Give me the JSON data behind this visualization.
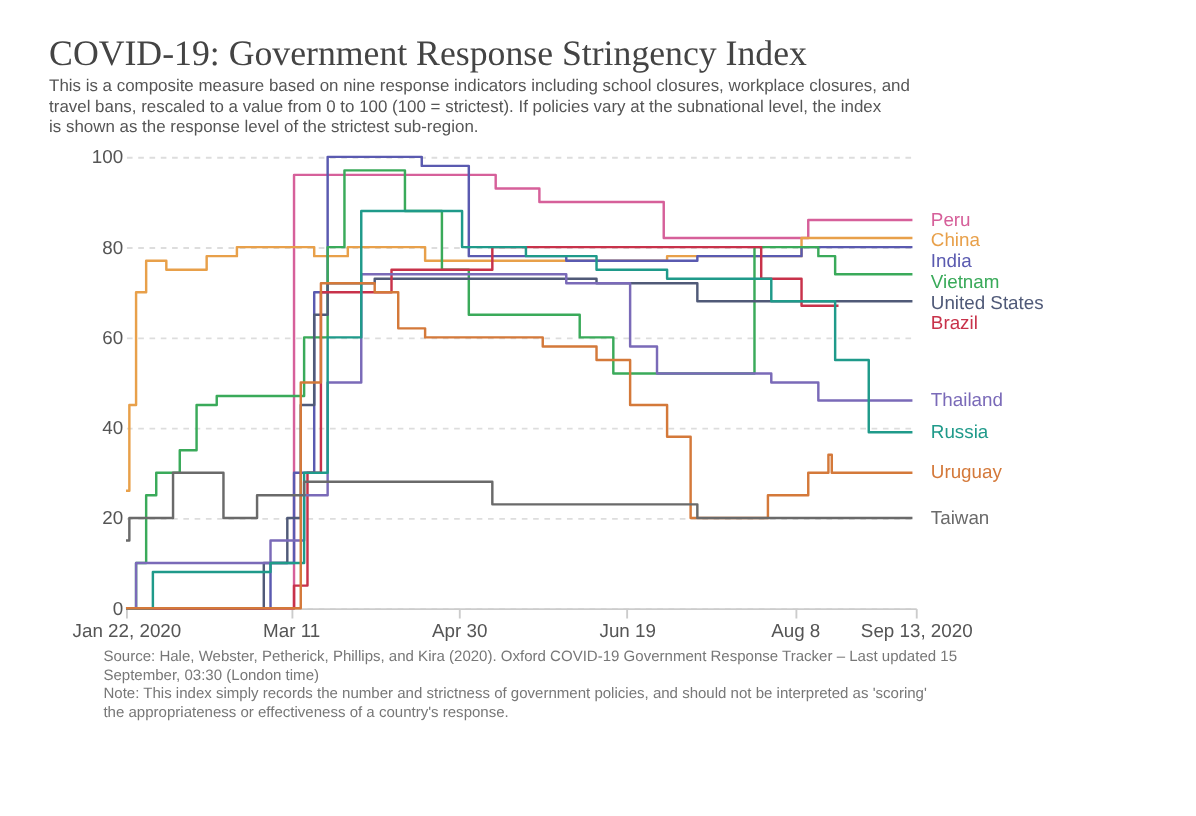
{
  "chart_data": {
    "type": "step",
    "title": "COVID-19: Government Response Stringency Index",
    "subtitle": "This is a composite measure based on nine response indicators including school closures, workplace closures, and travel bans, rescaled to a value from 0 to 100 (100 = strictest). If policies vary at the subnational level, the index is shown as the response level of the strictest sub-region.",
    "annotations": [
      "Source: Hale, Webster, Petherick, Phillips, and Kira (2020). Oxford COVID-19 Government Response Tracker – Last updated 15 September, 03:30 (London time)",
      "Note: This index simply records the number and strictness of government policies, and should not be interpreted as 'scoring' the appropriateness or effectiveness of a country's response."
    ],
    "xlim": [
      "2020-01-22",
      "2020-09-13"
    ],
    "xticks": [
      {
        "value": "2020-01-22",
        "label": "Jan 22, 2020"
      },
      {
        "value": "2020-03-11",
        "label": "Mar 11"
      },
      {
        "value": "2020-04-30",
        "label": "Apr 30"
      },
      {
        "value": "2020-06-19",
        "label": "Jun 19"
      },
      {
        "value": "2020-08-08",
        "label": "Aug 8"
      },
      {
        "value": "2020-09-13",
        "label": "Sep 13, 2020"
      }
    ],
    "ylim": [
      0,
      100
    ],
    "yticks": [
      0,
      20,
      40,
      60,
      80,
      100
    ],
    "grid": "y",
    "legend": "right",
    "line_style": "solid",
    "series": [
      {
        "name": "Peru",
        "color": "#d6609a",
        "x": [
          "2020-01-22",
          "2020-03-11",
          "2020-03-12",
          "2020-05-11",
          "2020-05-24",
          "2020-06-30",
          "2020-08-12",
          "2020-09-12"
        ],
        "values": [
          0,
          0,
          96,
          93,
          90,
          82,
          86,
          86
        ]
      },
      {
        "name": "China",
        "color": "#e8a04a",
        "x": [
          "2020-01-22",
          "2020-01-23",
          "2020-01-25",
          "2020-01-28",
          "2020-02-03",
          "2020-02-15",
          "2020-02-24",
          "2020-03-18",
          "2020-03-28",
          "2020-04-20",
          "2020-07-01",
          "2020-08-10",
          "2020-09-12"
        ],
        "values": [
          26,
          45,
          70,
          77,
          75,
          78,
          80,
          78,
          80,
          77,
          78,
          82,
          82
        ]
      },
      {
        "name": "India",
        "color": "#5a5ab0",
        "x": [
          "2020-01-22",
          "2020-03-05",
          "2020-03-12",
          "2020-03-18",
          "2020-03-22",
          "2020-04-19",
          "2020-05-03",
          "2020-06-01",
          "2020-07-10",
          "2020-08-10",
          "2020-09-12"
        ],
        "values": [
          0,
          10,
          30,
          70,
          100,
          98,
          78,
          77,
          78,
          80,
          80
        ]
      },
      {
        "name": "Vietnam",
        "color": "#3aaa5a",
        "x": [
          "2020-01-22",
          "2020-01-25",
          "2020-01-28",
          "2020-01-31",
          "2020-02-07",
          "2020-02-12",
          "2020-02-18",
          "2020-03-10",
          "2020-03-15",
          "2020-03-22",
          "2020-03-27",
          "2020-04-14",
          "2020-04-25",
          "2020-05-03",
          "2020-06-05",
          "2020-06-15",
          "2020-07-27",
          "2020-08-15",
          "2020-08-20",
          "2020-09-12"
        ],
        "values": [
          0,
          10,
          25,
          30,
          35,
          45,
          47,
          47,
          60,
          80,
          97,
          88,
          75,
          65,
          60,
          52,
          80,
          78,
          74,
          74
        ]
      },
      {
        "name": "United States",
        "color": "#505a78",
        "x": [
          "2020-01-22",
          "2020-03-03",
          "2020-03-10",
          "2020-03-14",
          "2020-03-18",
          "2020-03-22",
          "2020-04-05",
          "2020-06-10",
          "2020-07-10",
          "2020-09-12"
        ],
        "values": [
          0,
          10,
          20,
          45,
          65,
          72,
          73,
          72,
          68,
          68
        ]
      },
      {
        "name": "Brazil",
        "color": "#c8324a",
        "x": [
          "2020-01-22",
          "2020-03-12",
          "2020-03-16",
          "2020-03-20",
          "2020-04-10",
          "2020-05-10",
          "2020-07-25",
          "2020-07-29",
          "2020-08-10",
          "2020-08-21"
        ],
        "values": [
          0,
          5,
          30,
          70,
          75,
          80,
          80,
          73,
          67,
          67
        ]
      },
      {
        "name": "Thailand",
        "color": "#7a6ab8",
        "x": [
          "2020-01-22",
          "2020-01-25",
          "2020-03-05",
          "2020-03-15",
          "2020-03-22",
          "2020-04-01",
          "2020-06-01",
          "2020-06-20",
          "2020-06-28",
          "2020-08-01",
          "2020-08-15",
          "2020-09-12"
        ],
        "values": [
          0,
          10,
          15,
          25,
          50,
          74,
          72,
          58,
          52,
          50,
          46,
          46
        ]
      },
      {
        "name": "Russia",
        "color": "#1f9a8a",
        "x": [
          "2020-01-22",
          "2020-01-30",
          "2020-03-05",
          "2020-03-15",
          "2020-03-22",
          "2020-04-01",
          "2020-05-01",
          "2020-05-20",
          "2020-06-10",
          "2020-07-01",
          "2020-08-01",
          "2020-08-20",
          "2020-08-30",
          "2020-09-12"
        ],
        "values": [
          0,
          8,
          10,
          30,
          60,
          88,
          80,
          78,
          75,
          73,
          68,
          55,
          39,
          39
        ]
      },
      {
        "name": "Uruguay",
        "color": "#d4793a",
        "x": [
          "2020-01-22",
          "2020-03-14",
          "2020-03-20",
          "2020-04-05",
          "2020-04-12",
          "2020-04-20",
          "2020-05-25",
          "2020-06-10",
          "2020-06-20",
          "2020-07-01",
          "2020-07-08",
          "2020-07-31",
          "2020-08-12",
          "2020-08-18",
          "2020-08-19",
          "2020-09-12"
        ],
        "values": [
          0,
          50,
          72,
          70,
          62,
          60,
          58,
          55,
          45,
          38,
          20,
          25,
          30,
          34,
          30,
          30
        ]
      },
      {
        "name": "Taiwan",
        "color": "#6a6a6a",
        "x": [
          "2020-01-22",
          "2020-01-23",
          "2020-02-05",
          "2020-02-20",
          "2020-03-01",
          "2020-03-15",
          "2020-05-10",
          "2020-07-10",
          "2020-09-12"
        ],
        "values": [
          15,
          20,
          30,
          20,
          25,
          28,
          23,
          20,
          20
        ]
      }
    ]
  }
}
